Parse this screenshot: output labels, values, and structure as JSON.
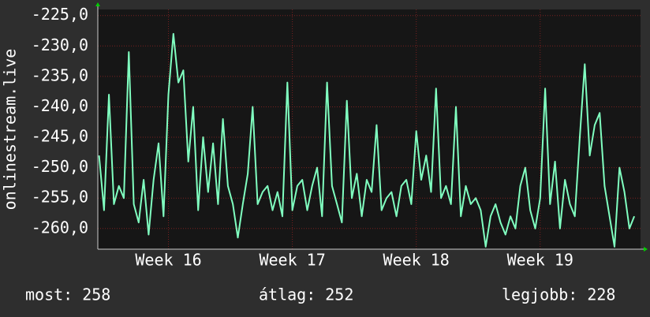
{
  "chart_data": {
    "type": "line",
    "y_label": "onlinestream.live",
    "xlim": [
      15.43,
      19.81
    ],
    "xticks": [
      {
        "value": 16,
        "label": "Week 16"
      },
      {
        "value": 17,
        "label": "Week 17"
      },
      {
        "value": 18,
        "label": "Week 18"
      },
      {
        "value": 19,
        "label": "Week 19"
      }
    ],
    "ylim": [
      -263.4,
      -224
    ],
    "yticks": [
      {
        "value": -225,
        "label": "-225,0"
      },
      {
        "value": -230,
        "label": "-230,0"
      },
      {
        "value": -235,
        "label": "-235,0"
      },
      {
        "value": -240,
        "label": "-240,0"
      },
      {
        "value": -245,
        "label": "-245,0"
      },
      {
        "value": -250,
        "label": "-250,0"
      },
      {
        "value": -255,
        "label": "-255,0"
      },
      {
        "value": -260,
        "label": "-260,0"
      }
    ],
    "grid": true,
    "x": [
      15.44,
      15.48,
      15.52,
      15.56,
      15.6,
      15.64,
      15.68,
      15.72,
      15.76,
      15.8,
      15.84,
      15.88,
      15.92,
      15.96,
      16,
      16.04,
      16.08,
      16.12,
      16.16,
      16.2,
      16.24,
      16.28,
      16.32,
      16.36,
      16.4,
      16.44,
      16.48,
      16.52,
      16.56,
      16.6,
      16.64,
      16.68,
      16.72,
      16.76,
      16.8,
      16.84,
      16.88,
      16.92,
      16.96,
      17,
      17.04,
      17.08,
      17.12,
      17.16,
      17.2,
      17.24,
      17.28,
      17.32,
      17.36,
      17.4,
      17.44,
      17.48,
      17.52,
      17.56,
      17.6,
      17.64,
      17.68,
      17.72,
      17.76,
      17.8,
      17.84,
      17.88,
      17.92,
      17.96,
      18,
      18.04,
      18.08,
      18.12,
      18.16,
      18.2,
      18.24,
      18.28,
      18.32,
      18.36,
      18.4,
      18.44,
      18.48,
      18.52,
      18.56,
      18.6,
      18.64,
      18.68,
      18.72,
      18.76,
      18.8,
      18.84,
      18.88,
      18.92,
      18.96,
      19,
      19.04,
      19.08,
      19.12,
      19.16,
      19.2,
      19.24,
      19.28,
      19.32,
      19.36,
      19.4,
      19.44,
      19.48,
      19.52,
      19.56,
      19.6,
      19.64,
      19.68,
      19.72,
      19.76
    ],
    "series": [
      {
        "color": "#80ffc0",
        "values": [
          -248,
          -257,
          -238,
          -256,
          -253,
          -255,
          -231,
          -256,
          -259,
          -252,
          -261,
          -252,
          -246,
          -258,
          -238,
          -228,
          -236,
          -234,
          -249,
          -240,
          -257,
          -245,
          -254,
          -246,
          -256,
          -242,
          -253,
          -256,
          -261.5,
          -256,
          -251,
          -240,
          -256,
          -254,
          -253,
          -257,
          -254,
          -258,
          -236,
          -257,
          -253,
          -252,
          -257,
          -253,
          -250,
          -258,
          -236,
          -253,
          -256,
          -259,
          -239,
          -255,
          -251,
          -258,
          -252,
          -254,
          -243,
          -257,
          -255,
          -254,
          -258,
          -253,
          -252,
          -256,
          -244,
          -252,
          -248,
          -254,
          -237,
          -255,
          -253,
          -256,
          -240,
          -258,
          -253,
          -256,
          -255,
          -257,
          -263,
          -258,
          -256,
          -259,
          -261,
          -258,
          -260,
          -253,
          -250,
          -257,
          -260,
          -255,
          -237,
          -256,
          -249,
          -260,
          -252,
          -256,
          -258,
          -245,
          -233,
          -248,
          -243,
          -241,
          -253,
          -258,
          -263,
          -250,
          -254,
          -260,
          -258
        ]
      }
    ],
    "footer": [
      {
        "label": "most:",
        "value": 258
      },
      {
        "label": "átlag:",
        "value": 252
      },
      {
        "label": "legjobb:",
        "value": 228
      }
    ]
  }
}
